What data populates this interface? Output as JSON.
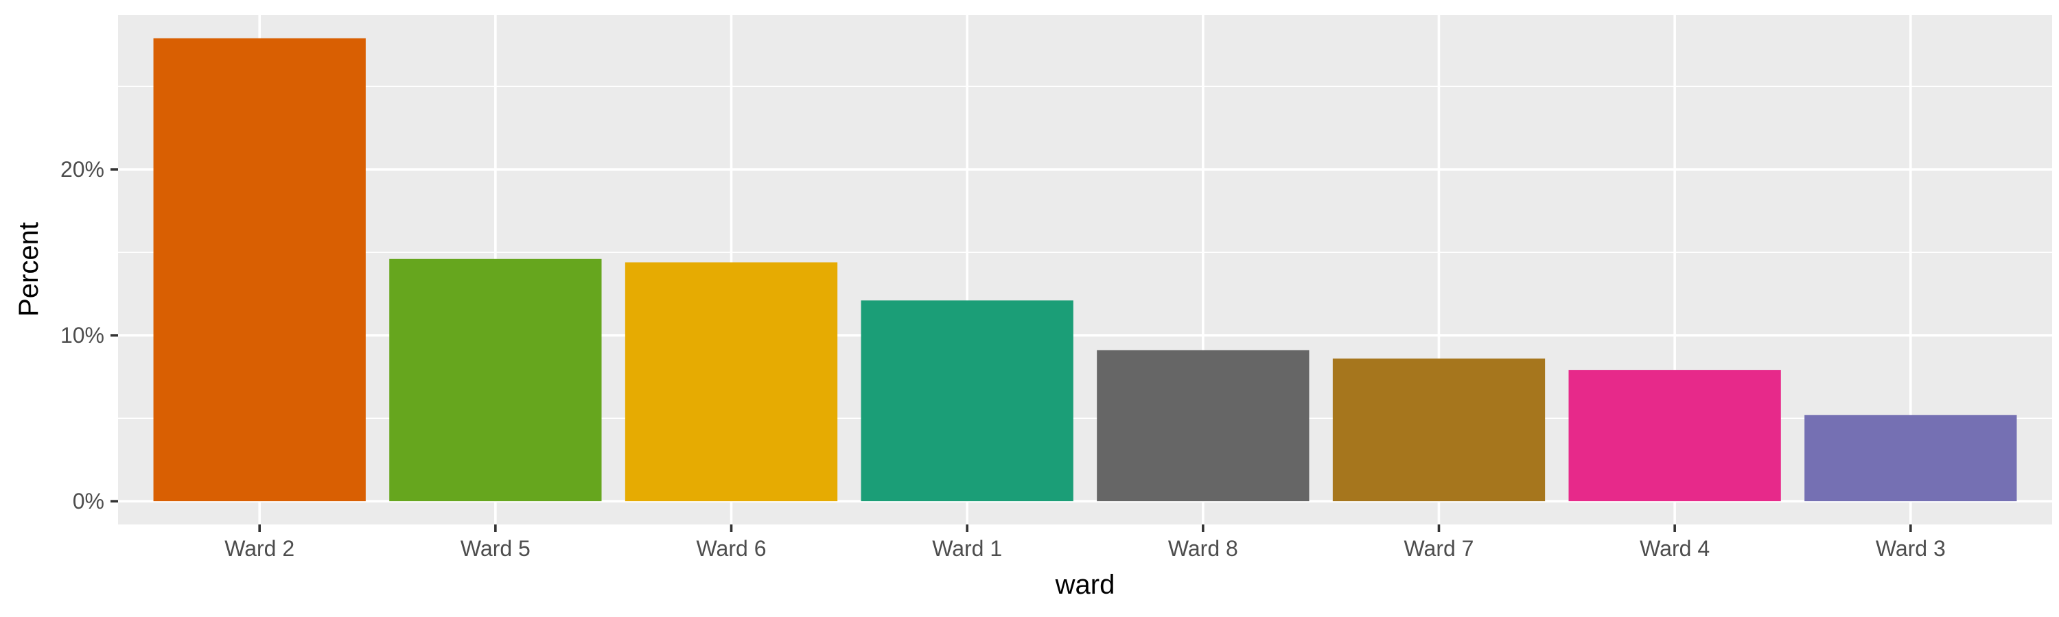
{
  "chart_data": {
    "type": "bar",
    "categories": [
      "Ward 2",
      "Ward 5",
      "Ward 6",
      "Ward 1",
      "Ward 8",
      "Ward 7",
      "Ward 4",
      "Ward 3"
    ],
    "values": [
      27.9,
      14.6,
      14.4,
      12.1,
      9.1,
      8.6,
      7.9,
      5.2
    ],
    "colors": [
      "#D95F02",
      "#66A61E",
      "#E6AB02",
      "#1B9E77",
      "#666666",
      "#A6761D",
      "#E7298A",
      "#7570B3"
    ],
    "xlabel": "ward",
    "ylabel": "Percent",
    "ylim": [
      -1.4,
      29.3
    ],
    "yticks": [
      0,
      10,
      20
    ],
    "ytick_labels": [
      "0%",
      "10%",
      "20%"
    ],
    "yminor": [
      5,
      15,
      25
    ],
    "grid": true,
    "legend": "none",
    "panel_background": "#EBEBEB"
  }
}
